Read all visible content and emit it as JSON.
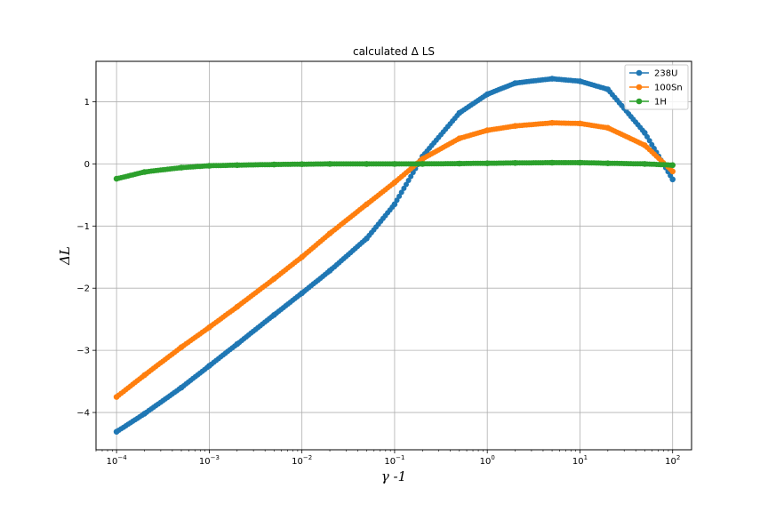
{
  "chart_data": {
    "type": "scatter",
    "title": "calculated Δ LS",
    "xlabel": "γ -1",
    "ylabel": "ΔL",
    "xscale": "log",
    "xlim": [
      6e-05,
      160
    ],
    "ylim": [
      -4.6,
      1.65
    ],
    "grid": true,
    "legend_position": "top-right",
    "xticks": [
      {
        "value": 0.0001,
        "base": "10",
        "exp": "−4"
      },
      {
        "value": 0.001,
        "base": "10",
        "exp": "−3"
      },
      {
        "value": 0.01,
        "base": "10",
        "exp": "−2"
      },
      {
        "value": 0.1,
        "base": "10",
        "exp": "−1"
      },
      {
        "value": 1,
        "base": "10",
        "exp": "0"
      },
      {
        "value": 10,
        "base": "10",
        "exp": "1"
      },
      {
        "value": 100,
        "base": "10",
        "exp": "2"
      }
    ],
    "yticks": [
      {
        "value": -4,
        "label": "−4"
      },
      {
        "value": -3,
        "label": "−3"
      },
      {
        "value": -2,
        "label": "−2"
      },
      {
        "value": -1,
        "label": "−1"
      },
      {
        "value": 0,
        "label": "0"
      },
      {
        "value": 1,
        "label": "1"
      }
    ],
    "series": [
      {
        "name": "238U",
        "color": "#1f77b4",
        "x": [
          0.0001,
          0.0002,
          0.0005,
          0.001,
          0.002,
          0.005,
          0.01,
          0.02,
          0.05,
          0.1,
          0.2,
          0.5,
          1,
          2,
          5,
          10,
          20,
          50,
          100
        ],
        "y": [
          -4.31,
          -4.02,
          -3.6,
          -3.25,
          -2.9,
          -2.43,
          -2.08,
          -1.72,
          -1.2,
          -0.65,
          0.12,
          0.82,
          1.12,
          1.3,
          1.37,
          1.33,
          1.2,
          0.5,
          -0.25
        ]
      },
      {
        "name": "100Sn",
        "color": "#ff7f0e",
        "x": [
          0.0001,
          0.0002,
          0.0005,
          0.001,
          0.002,
          0.005,
          0.01,
          0.02,
          0.05,
          0.1,
          0.2,
          0.5,
          1,
          2,
          5,
          10,
          20,
          50,
          100
        ],
        "y": [
          -3.75,
          -3.4,
          -2.95,
          -2.63,
          -2.3,
          -1.85,
          -1.5,
          -1.12,
          -0.65,
          -0.3,
          0.08,
          0.41,
          0.54,
          0.61,
          0.66,
          0.65,
          0.58,
          0.3,
          -0.12
        ]
      },
      {
        "name": "1H",
        "color": "#2ca02c",
        "x": [
          0.0001,
          0.0002,
          0.0005,
          0.001,
          0.002,
          0.005,
          0.01,
          0.02,
          0.05,
          0.1,
          0.2,
          0.5,
          1,
          2,
          5,
          10,
          20,
          50,
          100
        ],
        "y": [
          -0.24,
          -0.13,
          -0.06,
          -0.03,
          -0.02,
          -0.01,
          -0.005,
          0,
          0,
          0,
          0,
          0.005,
          0.01,
          0.015,
          0.02,
          0.02,
          0.01,
          0,
          -0.02
        ]
      }
    ]
  }
}
